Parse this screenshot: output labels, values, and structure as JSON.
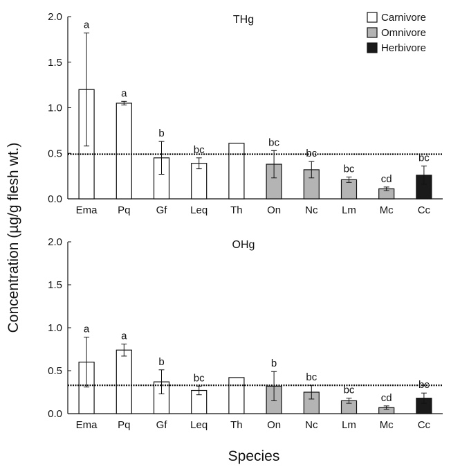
{
  "chart_data": [
    {
      "type": "bar",
      "title": "THg",
      "categories": [
        "Ema",
        "Pq",
        "Gf",
        "Leq",
        "Th",
        "On",
        "Nc",
        "Lm",
        "Mc",
        "Cc"
      ],
      "values": [
        1.2,
        1.05,
        0.45,
        0.39,
        0.61,
        0.38,
        0.32,
        0.21,
        0.11,
        0.26
      ],
      "error": [
        0.62,
        0.02,
        0.18,
        0.06,
        null,
        0.15,
        0.09,
        0.03,
        0.02,
        0.1
      ],
      "groups": [
        "Carnivore",
        "Carnivore",
        "Carnivore",
        "Carnivore",
        "Carnivore",
        "Omnivore",
        "Omnivore",
        "Omnivore",
        "Omnivore",
        "Herbivore"
      ],
      "letters": [
        "a",
        "a",
        "b",
        "bc",
        "",
        "bc",
        "bc",
        "bc",
        "cd",
        "bc"
      ],
      "reference_line": 0.49,
      "yticks": [
        "0.0",
        "0.5",
        "1.0",
        "1.5",
        "2.0"
      ],
      "ylim": [
        0,
        2.0
      ]
    },
    {
      "type": "bar",
      "title": "OHg",
      "categories": [
        "Ema",
        "Pq",
        "Gf",
        "Leq",
        "Th",
        "On",
        "Nc",
        "Lm",
        "Mc",
        "Cc"
      ],
      "values": [
        0.6,
        0.74,
        0.37,
        0.27,
        0.42,
        0.32,
        0.25,
        0.15,
        0.07,
        0.18
      ],
      "error": [
        0.29,
        0.07,
        0.14,
        0.05,
        null,
        0.17,
        0.08,
        0.03,
        0.02,
        0.06
      ],
      "groups": [
        "Carnivore",
        "Carnivore",
        "Carnivore",
        "Carnivore",
        "Carnivore",
        "Omnivore",
        "Omnivore",
        "Omnivore",
        "Omnivore",
        "Herbivore"
      ],
      "letters": [
        "a",
        "a",
        "b",
        "bc",
        "",
        "b",
        "bc",
        "bc",
        "cd",
        "bc"
      ],
      "reference_line": 0.33,
      "yticks": [
        "0.0",
        "0.5",
        "1.0",
        "1.5",
        "2.0"
      ],
      "ylim": [
        0,
        2.0
      ]
    }
  ],
  "legend": [
    {
      "label": "Carnivore",
      "color": "#ffffff"
    },
    {
      "label": "Omnivore",
      "color": "#b4b4b4"
    },
    {
      "label": "Herbivore",
      "color": "#1a1a1a"
    }
  ],
  "ylabel": "Concentration (µg/g flesh wt.)",
  "xlabel": "Species"
}
